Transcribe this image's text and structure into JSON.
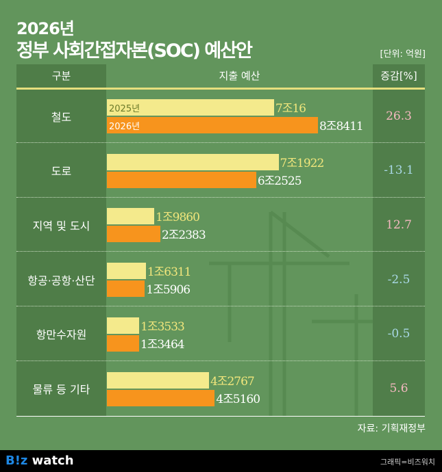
{
  "title_line1": "2026년",
  "title_line2": "정부 사회간접자본(SOC) 예산안",
  "unit": "[단위: 억원]",
  "headers": {
    "category": "구분",
    "budget": "지출 예산",
    "change": "증감[%]"
  },
  "colors": {
    "y2025": "#f4ea8c",
    "y2026": "#f7941d",
    "positive": "#f4b8c0",
    "negative": "#a9d8e6"
  },
  "chart_data": {
    "type": "bar",
    "orientation": "horizontal",
    "title": "2026년 정부 사회간접자본(SOC) 예산안",
    "unit": "억원",
    "categories": [
      "철도",
      "도로",
      "지역 및 도시",
      "항공·공항·산단",
      "항만수자원",
      "물류 등 기타"
    ],
    "series": [
      {
        "name": "2025년",
        "values": [
          70016,
          71922,
          19860,
          16311,
          13533,
          42767
        ],
        "labels": [
          "7조16",
          "7조1922",
          "1조9860",
          "1조6311",
          "1조3533",
          "4조2767"
        ]
      },
      {
        "name": "2026년",
        "values": [
          88411,
          62525,
          22383,
          15906,
          13464,
          45160
        ],
        "labels": [
          "8조8411",
          "6조2525",
          "2조2383",
          "1조5906",
          "1조3464",
          "4조5160"
        ]
      }
    ],
    "change_pct": [
      "26.3",
      "-13.1",
      "12.7",
      "-2.5",
      "-0.5",
      "5.6"
    ],
    "xlim": [
      0,
      88411
    ]
  },
  "source": "자료: 기획재정부",
  "footer": {
    "logo_b": "B!z",
    "logo_w": " watch",
    "credit": "그래픽=비즈워치"
  }
}
